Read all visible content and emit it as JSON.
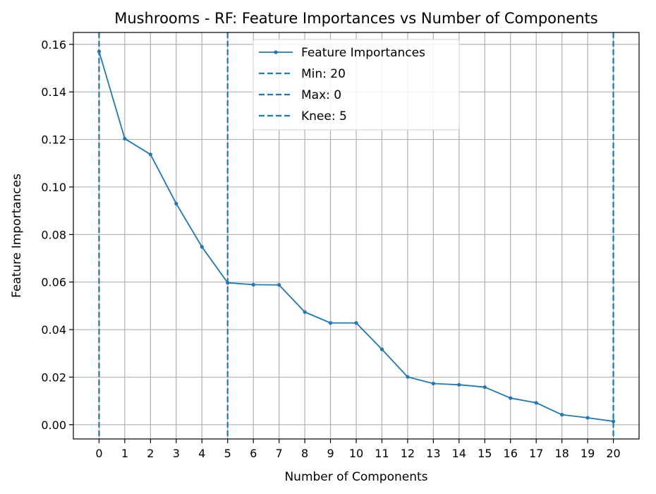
{
  "chart_data": {
    "type": "line",
    "title": "Mushrooms - RF: Feature Importances vs Number of Components",
    "xlabel": "Number of Components",
    "ylabel": "Feature Importances",
    "xlim": [
      -1,
      21
    ],
    "ylim": [
      -0.006,
      0.165
    ],
    "x_ticks": [
      0,
      1,
      2,
      3,
      4,
      5,
      6,
      7,
      8,
      9,
      10,
      11,
      12,
      13,
      14,
      15,
      16,
      17,
      18,
      19,
      20
    ],
    "y_ticks": [
      0.0,
      0.02,
      0.04,
      0.06,
      0.08,
      0.1,
      0.12,
      0.14,
      0.16
    ],
    "y_tick_labels": [
      "0.00",
      "0.02",
      "0.04",
      "0.06",
      "0.08",
      "0.10",
      "0.12",
      "0.14",
      "0.16"
    ],
    "grid": true,
    "legend_position": "top-center",
    "series": [
      {
        "name": "Feature Importances",
        "color": "#1f77b4",
        "x": [
          0,
          1,
          2,
          3,
          4,
          5,
          6,
          7,
          8,
          9,
          10,
          11,
          12,
          13,
          14,
          15,
          16,
          17,
          18,
          19,
          20
        ],
        "values": [
          0.157,
          0.1203,
          0.1137,
          0.093,
          0.0748,
          0.0597,
          0.0589,
          0.0588,
          0.0474,
          0.0428,
          0.0428,
          0.0317,
          0.0201,
          0.0173,
          0.0168,
          0.0158,
          0.0112,
          0.0092,
          0.0042,
          0.0029,
          0.0014
        ]
      }
    ],
    "vlines": [
      {
        "name": "Min: 20",
        "x": 20,
        "color": "#1f77b4"
      },
      {
        "name": "Max: 0",
        "x": 0,
        "color": "#1f77b4"
      },
      {
        "name": "Knee: 5",
        "x": 5,
        "color": "#1f77b4"
      }
    ]
  }
}
